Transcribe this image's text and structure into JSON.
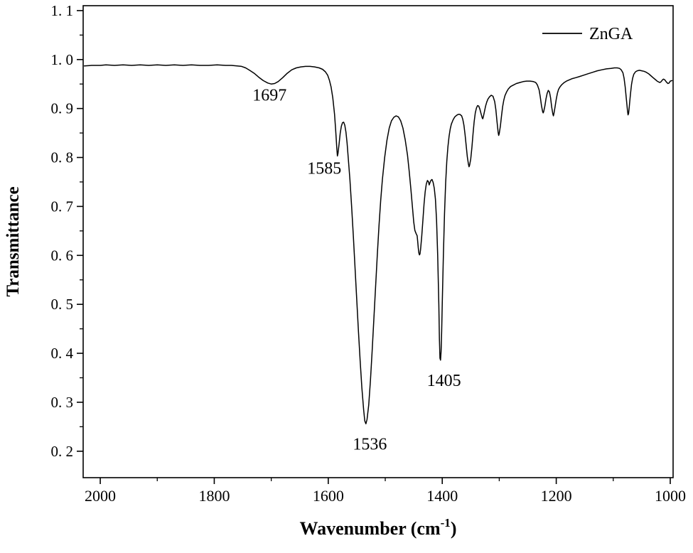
{
  "figure": {
    "background_color": "#ffffff",
    "frame_color": "#000000",
    "accent_red": "#ff0000"
  },
  "chart_data": {
    "type": "line",
    "title": "",
    "xlabel": "Wavenumber (cm⁻¹)",
    "ylabel": "Transmittance",
    "x_axis": {
      "label_parts": [
        "Wavenumber (cm",
        "-1",
        ")"
      ],
      "ticks": [
        2000,
        1800,
        1600,
        1400,
        1200,
        1000
      ],
      "tick_labels": [
        "2000",
        "1800",
        "1600",
        "1400",
        "1200",
        "1000"
      ],
      "minor_ticks": [
        1900,
        1700,
        1500,
        1300,
        1100
      ],
      "range": [
        2030,
        995
      ],
      "reversed": true
    },
    "y_axis": {
      "label": "Transmittance",
      "ticks": [
        0.2,
        0.3,
        0.4,
        0.5,
        0.6,
        0.7,
        0.8,
        0.9,
        1.0,
        1.1
      ],
      "tick_labels": [
        "0. 2",
        "0. 3",
        "0. 4",
        "0. 5",
        "0. 6",
        "0. 7",
        "0. 8",
        "0. 9",
        "1. 0",
        "1. 1"
      ],
      "minor_ticks": [
        0.25,
        0.35,
        0.45,
        0.55,
        0.65,
        0.75,
        0.85,
        0.95,
        1.05
      ],
      "range": [
        0.146,
        1.11
      ]
    },
    "legend": {
      "position": "top-right",
      "entries": [
        {
          "label": "ZnGA",
          "color": "#000000"
        }
      ]
    },
    "annotations": [
      {
        "text": "1697",
        "x": 1703,
        "y": 0.928,
        "color": "#ff0000"
      },
      {
        "text": "1585",
        "x": 1607,
        "y": 0.778,
        "color": "#000000"
      },
      {
        "text": "1536",
        "x": 1527,
        "y": 0.215,
        "color": "#000000"
      },
      {
        "text": "1405",
        "x": 1397,
        "y": 0.345,
        "color": "#000000"
      }
    ],
    "series": [
      {
        "name": "ZnGA",
        "color": "#000000",
        "points": [
          [
            2028,
            0.987
          ],
          [
            2015,
            0.988
          ],
          [
            2000,
            0.988
          ],
          [
            1990,
            0.989
          ],
          [
            1975,
            0.988
          ],
          [
            1960,
            0.989
          ],
          [
            1945,
            0.988
          ],
          [
            1930,
            0.989
          ],
          [
            1915,
            0.988
          ],
          [
            1900,
            0.989
          ],
          [
            1885,
            0.988
          ],
          [
            1870,
            0.989
          ],
          [
            1855,
            0.988
          ],
          [
            1840,
            0.989
          ],
          [
            1825,
            0.988
          ],
          [
            1810,
            0.988
          ],
          [
            1795,
            0.989
          ],
          [
            1780,
            0.988
          ],
          [
            1770,
            0.988
          ],
          [
            1760,
            0.987
          ],
          [
            1752,
            0.986
          ],
          [
            1745,
            0.983
          ],
          [
            1738,
            0.978
          ],
          [
            1730,
            0.972
          ],
          [
            1722,
            0.964
          ],
          [
            1714,
            0.957
          ],
          [
            1706,
            0.952
          ],
          [
            1700,
            0.95
          ],
          [
            1694,
            0.951
          ],
          [
            1688,
            0.955
          ],
          [
            1680,
            0.963
          ],
          [
            1672,
            0.972
          ],
          [
            1664,
            0.979
          ],
          [
            1656,
            0.983
          ],
          [
            1648,
            0.985
          ],
          [
            1640,
            0.986
          ],
          [
            1632,
            0.986
          ],
          [
            1624,
            0.985
          ],
          [
            1616,
            0.983
          ],
          [
            1610,
            0.98
          ],
          [
            1605,
            0.975
          ],
          [
            1601,
            0.968
          ],
          [
            1598,
            0.958
          ],
          [
            1595,
            0.944
          ],
          [
            1592,
            0.922
          ],
          [
            1589,
            0.888
          ],
          [
            1587,
            0.855
          ],
          [
            1585,
            0.818
          ],
          [
            1584,
            0.803
          ],
          [
            1583,
            0.808
          ],
          [
            1581,
            0.828
          ],
          [
            1579,
            0.85
          ],
          [
            1577,
            0.864
          ],
          [
            1575,
            0.871
          ],
          [
            1573,
            0.872
          ],
          [
            1571,
            0.866
          ],
          [
            1569,
            0.852
          ],
          [
            1567,
            0.83
          ],
          [
            1565,
            0.8
          ],
          [
            1562,
            0.755
          ],
          [
            1559,
            0.7
          ],
          [
            1556,
            0.64
          ],
          [
            1553,
            0.575
          ],
          [
            1550,
            0.51
          ],
          [
            1547,
            0.445
          ],
          [
            1544,
            0.385
          ],
          [
            1541,
            0.33
          ],
          [
            1538,
            0.285
          ],
          [
            1536,
            0.262
          ],
          [
            1534,
            0.256
          ],
          [
            1532,
            0.265
          ],
          [
            1529,
            0.295
          ],
          [
            1526,
            0.345
          ],
          [
            1523,
            0.405
          ],
          [
            1520,
            0.47
          ],
          [
            1517,
            0.535
          ],
          [
            1514,
            0.6
          ],
          [
            1511,
            0.66
          ],
          [
            1508,
            0.712
          ],
          [
            1505,
            0.755
          ],
          [
            1501,
            0.8
          ],
          [
            1497,
            0.835
          ],
          [
            1493,
            0.86
          ],
          [
            1489,
            0.875
          ],
          [
            1485,
            0.882
          ],
          [
            1481,
            0.885
          ],
          [
            1477,
            0.883
          ],
          [
            1473,
            0.875
          ],
          [
            1469,
            0.86
          ],
          [
            1465,
            0.836
          ],
          [
            1461,
            0.805
          ],
          [
            1458,
            0.772
          ],
          [
            1455,
            0.735
          ],
          [
            1452,
            0.695
          ],
          [
            1450,
            0.668
          ],
          [
            1448,
            0.651
          ],
          [
            1446,
            0.645
          ],
          [
            1444,
            0.64
          ],
          [
            1443,
            0.628
          ],
          [
            1442,
            0.615
          ],
          [
            1441,
            0.605
          ],
          [
            1440,
            0.601
          ],
          [
            1439,
            0.603
          ],
          [
            1438,
            0.612
          ],
          [
            1436,
            0.638
          ],
          [
            1434,
            0.672
          ],
          [
            1432,
            0.705
          ],
          [
            1430,
            0.73
          ],
          [
            1428,
            0.746
          ],
          [
            1426,
            0.753
          ],
          [
            1424,
            0.75
          ],
          [
            1423,
            0.744
          ],
          [
            1422,
            0.747
          ],
          [
            1420,
            0.753
          ],
          [
            1418,
            0.755
          ],
          [
            1416,
            0.749
          ],
          [
            1414,
            0.737
          ],
          [
            1412,
            0.715
          ],
          [
            1410,
            0.672
          ],
          [
            1408,
            0.6
          ],
          [
            1406,
            0.5
          ],
          [
            1405,
            0.43
          ],
          [
            1404,
            0.39
          ],
          [
            1403,
            0.386
          ],
          [
            1402,
            0.404
          ],
          [
            1401,
            0.445
          ],
          [
            1400,
            0.5
          ],
          [
            1398,
            0.6
          ],
          [
            1396,
            0.685
          ],
          [
            1394,
            0.748
          ],
          [
            1392,
            0.792
          ],
          [
            1390,
            0.822
          ],
          [
            1388,
            0.843
          ],
          [
            1386,
            0.858
          ],
          [
            1384,
            0.868
          ],
          [
            1381,
            0.877
          ],
          [
            1378,
            0.883
          ],
          [
            1375,
            0.886
          ],
          [
            1372,
            0.888
          ],
          [
            1369,
            0.888
          ],
          [
            1366,
            0.885
          ],
          [
            1364,
            0.878
          ],
          [
            1362,
            0.866
          ],
          [
            1360,
            0.847
          ],
          [
            1358,
            0.824
          ],
          [
            1356,
            0.801
          ],
          [
            1354,
            0.786
          ],
          [
            1353,
            0.781
          ],
          [
            1352,
            0.784
          ],
          [
            1350,
            0.797
          ],
          [
            1348,
            0.82
          ],
          [
            1346,
            0.848
          ],
          [
            1344,
            0.873
          ],
          [
            1342,
            0.891
          ],
          [
            1340,
            0.901
          ],
          [
            1338,
            0.906
          ],
          [
            1336,
            0.905
          ],
          [
            1334,
            0.899
          ],
          [
            1332,
            0.89
          ],
          [
            1330,
            0.881
          ],
          [
            1329,
            0.879
          ],
          [
            1328,
            0.883
          ],
          [
            1326,
            0.894
          ],
          [
            1324,
            0.905
          ],
          [
            1322,
            0.913
          ],
          [
            1320,
            0.919
          ],
          [
            1317,
            0.924
          ],
          [
            1314,
            0.927
          ],
          [
            1311,
            0.925
          ],
          [
            1308,
            0.914
          ],
          [
            1306,
            0.898
          ],
          [
            1304,
            0.874
          ],
          [
            1302,
            0.852
          ],
          [
            1301,
            0.845
          ],
          [
            1300,
            0.849
          ],
          [
            1298,
            0.864
          ],
          [
            1296,
            0.885
          ],
          [
            1294,
            0.904
          ],
          [
            1292,
            0.917
          ],
          [
            1290,
            0.926
          ],
          [
            1287,
            0.934
          ],
          [
            1284,
            0.94
          ],
          [
            1280,
            0.945
          ],
          [
            1275,
            0.948
          ],
          [
            1270,
            0.951
          ],
          [
            1264,
            0.953
          ],
          [
            1258,
            0.955
          ],
          [
            1252,
            0.956
          ],
          [
            1246,
            0.956
          ],
          [
            1240,
            0.955
          ],
          [
            1236,
            0.953
          ],
          [
            1233,
            0.948
          ],
          [
            1230,
            0.938
          ],
          [
            1228,
            0.924
          ],
          [
            1226,
            0.906
          ],
          [
            1224,
            0.894
          ],
          [
            1223,
            0.891
          ],
          [
            1222,
            0.894
          ],
          [
            1220,
            0.905
          ],
          [
            1218,
            0.92
          ],
          [
            1216,
            0.931
          ],
          [
            1214,
            0.937
          ],
          [
            1212,
            0.934
          ],
          [
            1210,
            0.922
          ],
          [
            1208,
            0.903
          ],
          [
            1206,
            0.889
          ],
          [
            1205,
            0.885
          ],
          [
            1204,
            0.89
          ],
          [
            1202,
            0.904
          ],
          [
            1200,
            0.919
          ],
          [
            1198,
            0.931
          ],
          [
            1196,
            0.939
          ],
          [
            1193,
            0.945
          ],
          [
            1190,
            0.949
          ],
          [
            1186,
            0.953
          ],
          [
            1182,
            0.956
          ],
          [
            1178,
            0.958
          ],
          [
            1172,
            0.961
          ],
          [
            1166,
            0.963
          ],
          [
            1160,
            0.965
          ],
          [
            1152,
            0.968
          ],
          [
            1144,
            0.971
          ],
          [
            1136,
            0.974
          ],
          [
            1128,
            0.977
          ],
          [
            1120,
            0.979
          ],
          [
            1112,
            0.981
          ],
          [
            1104,
            0.982
          ],
          [
            1098,
            0.983
          ],
          [
            1093,
            0.983
          ],
          [
            1089,
            0.982
          ],
          [
            1086,
            0.979
          ],
          [
            1083,
            0.973
          ],
          [
            1081,
            0.962
          ],
          [
            1079,
            0.944
          ],
          [
            1077,
            0.92
          ],
          [
            1075,
            0.896
          ],
          [
            1074,
            0.887
          ],
          [
            1073,
            0.89
          ],
          [
            1072,
            0.903
          ],
          [
            1070,
            0.928
          ],
          [
            1068,
            0.949
          ],
          [
            1066,
            0.962
          ],
          [
            1064,
            0.97
          ],
          [
            1061,
            0.975
          ],
          [
            1058,
            0.977
          ],
          [
            1054,
            0.978
          ],
          [
            1050,
            0.977
          ],
          [
            1046,
            0.976
          ],
          [
            1042,
            0.974
          ],
          [
            1038,
            0.971
          ],
          [
            1034,
            0.967
          ],
          [
            1030,
            0.963
          ],
          [
            1026,
            0.959
          ],
          [
            1023,
            0.956
          ],
          [
            1020,
            0.954
          ],
          [
            1018,
            0.953
          ],
          [
            1016,
            0.955
          ],
          [
            1014,
            0.958
          ],
          [
            1012,
            0.96
          ],
          [
            1010,
            0.959
          ],
          [
            1008,
            0.956
          ],
          [
            1006,
            0.953
          ],
          [
            1004,
            0.951
          ],
          [
            1002,
            0.952
          ],
          [
            1000,
            0.956
          ],
          [
            997,
            0.957
          ]
        ]
      }
    ]
  }
}
